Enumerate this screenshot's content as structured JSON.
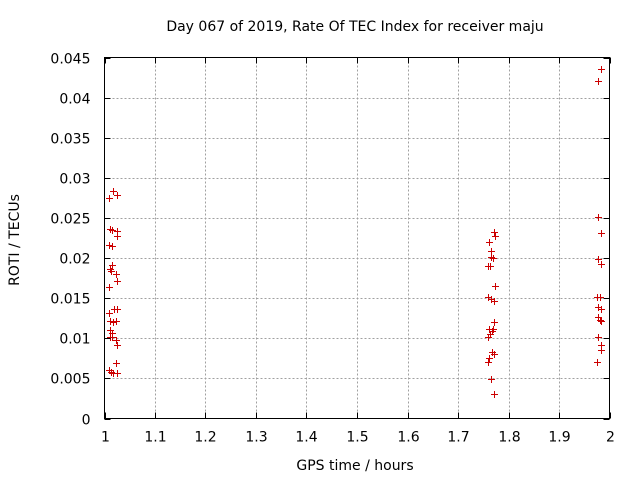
{
  "chart_data": {
    "type": "scatter",
    "title": "Day 067 of 2019, Rate Of TEC Index for receiver maju",
    "xlabel": "GPS time / hours",
    "ylabel": "ROTI / TECUs",
    "xlim": [
      1,
      2
    ],
    "ylim": [
      0,
      0.045
    ],
    "grid": true,
    "marker": "plus",
    "marker_color": "#cc0000",
    "x_ticks": [
      "1",
      "1.1",
      "1.2",
      "1.3",
      "1.4",
      "1.5",
      "1.6",
      "1.7",
      "1.8",
      "1.9",
      "2"
    ],
    "y_ticks": [
      "0",
      "0.005",
      "0.01",
      "0.015",
      "0.02",
      "0.025",
      "0.03",
      "0.035",
      "0.04",
      "0.045"
    ],
    "x_tick_values": [
      1,
      1.1,
      1.2,
      1.3,
      1.4,
      1.5,
      1.6,
      1.7,
      1.8,
      1.9,
      2
    ],
    "y_tick_values": [
      0,
      0.005,
      0.01,
      0.015,
      0.02,
      0.025,
      0.03,
      0.035,
      0.04,
      0.045
    ],
    "points": [
      [
        1.008,
        0.0275
      ],
      [
        1.017,
        0.0284
      ],
      [
        1.024,
        0.0279
      ],
      [
        1.01,
        0.0236
      ],
      [
        1.015,
        0.0235
      ],
      [
        1.024,
        0.0234
      ],
      [
        1.025,
        0.0227
      ],
      [
        1.008,
        0.0216
      ],
      [
        1.015,
        0.0215
      ],
      [
        1.01,
        0.0186
      ],
      [
        1.015,
        0.0191
      ],
      [
        1.012,
        0.0184
      ],
      [
        1.022,
        0.018
      ],
      [
        1.024,
        0.0172
      ],
      [
        1.008,
        0.0164
      ],
      [
        1.018,
        0.0137
      ],
      [
        1.024,
        0.0137
      ],
      [
        1.008,
        0.0131
      ],
      [
        1.011,
        0.0121
      ],
      [
        1.017,
        0.012
      ],
      [
        1.023,
        0.0121
      ],
      [
        1.01,
        0.011
      ],
      [
        1.015,
        0.0106
      ],
      [
        1.01,
        0.0101
      ],
      [
        1.014,
        0.0101
      ],
      [
        1.022,
        0.0098
      ],
      [
        1.025,
        0.0091
      ],
      [
        1.023,
        0.0069
      ],
      [
        1.024,
        0.0057
      ],
      [
        1.008,
        0.006
      ],
      [
        1.013,
        0.0058
      ],
      [
        1.017,
        0.0057
      ],
      [
        1.762,
        0.022
      ],
      [
        1.766,
        0.0209
      ],
      [
        1.77,
        0.02
      ],
      [
        1.766,
        0.0201
      ],
      [
        1.772,
        0.0233
      ],
      [
        1.773,
        0.0227
      ],
      [
        1.76,
        0.019
      ],
      [
        1.764,
        0.019
      ],
      [
        1.773,
        0.0165
      ],
      [
        1.76,
        0.0151
      ],
      [
        1.765,
        0.0149
      ],
      [
        1.772,
        0.0147
      ],
      [
        1.771,
        0.012
      ],
      [
        1.762,
        0.0111
      ],
      [
        1.767,
        0.0109
      ],
      [
        1.77,
        0.0111
      ],
      [
        1.76,
        0.0102
      ],
      [
        1.763,
        0.0105
      ],
      [
        1.767,
        0.0083
      ],
      [
        1.771,
        0.008
      ],
      [
        1.762,
        0.0076
      ],
      [
        1.76,
        0.0071
      ],
      [
        1.766,
        0.0049
      ],
      [
        1.772,
        0.0031
      ],
      [
        1.984,
        0.0436
      ],
      [
        1.978,
        0.0421
      ],
      [
        1.977,
        0.0251
      ],
      [
        1.983,
        0.0231
      ],
      [
        1.977,
        0.0199
      ],
      [
        1.983,
        0.0193
      ],
      [
        1.976,
        0.0152
      ],
      [
        1.982,
        0.0152
      ],
      [
        1.977,
        0.0139
      ],
      [
        1.983,
        0.0137
      ],
      [
        1.977,
        0.0127
      ],
      [
        1.981,
        0.0123
      ],
      [
        1.984,
        0.0122
      ],
      [
        1.978,
        0.0101
      ],
      [
        1.983,
        0.0092
      ],
      [
        1.983,
        0.0085
      ],
      [
        1.976,
        0.007
      ]
    ]
  }
}
